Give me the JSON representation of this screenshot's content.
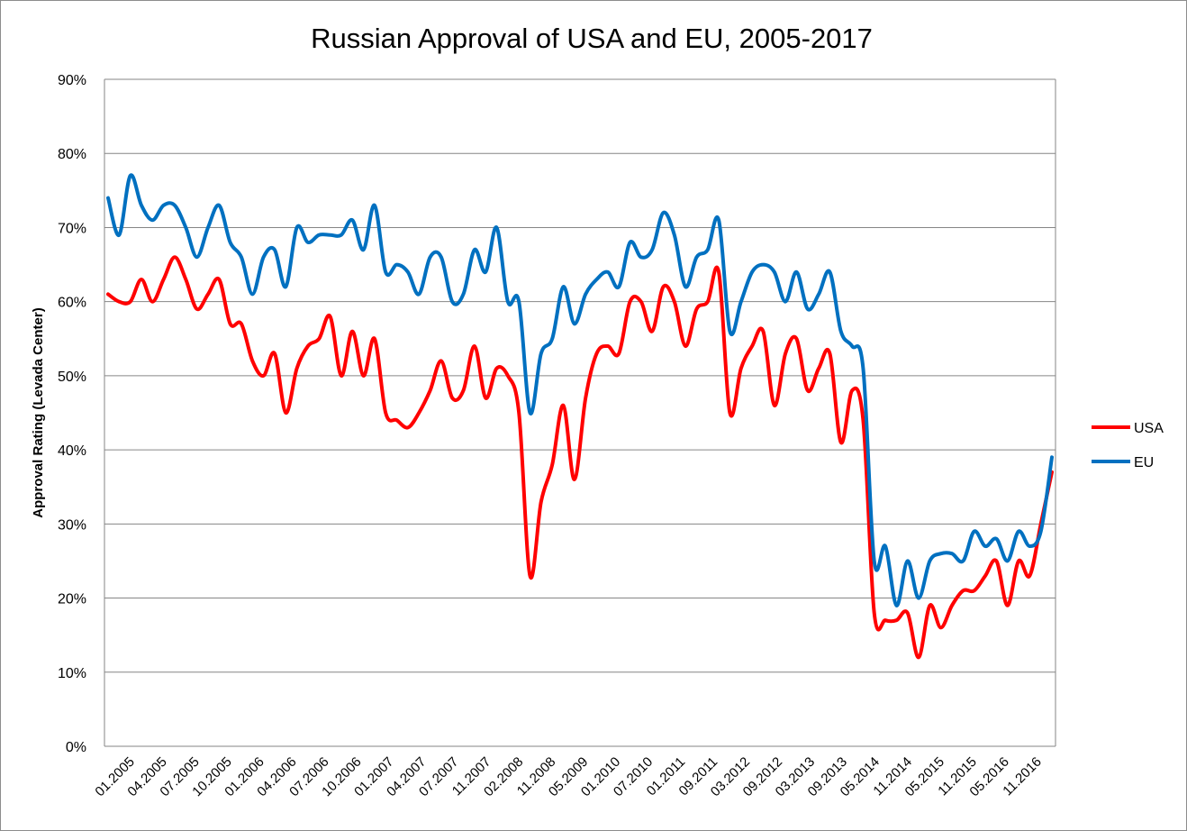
{
  "chart_data": {
    "type": "line",
    "title": "Russian Approval of USA and EU, 2005-2017",
    "xlabel": "",
    "ylabel": "Approval Rating (Levada Center)",
    "ylim": [
      0,
      90
    ],
    "yticks": [
      "0%",
      "10%",
      "20%",
      "30%",
      "40%",
      "50%",
      "60%",
      "70%",
      "80%",
      "90%"
    ],
    "x_tick_labels": [
      "01.2005",
      "04.2005",
      "07.2005",
      "10.2005",
      "01.2006",
      "04.2006",
      "07.2006",
      "10.2006",
      "01.2007",
      "04.2007",
      "07.2007",
      "11.2007",
      "02.2008",
      "11.2008",
      "05.2009",
      "01.2010",
      "07.2010",
      "01.2011",
      "09.2011",
      "03.2012",
      "09.2012",
      "03.2013",
      "09.2013",
      "05.2014",
      "11.2014",
      "05.2015",
      "11.2015",
      "05.2016",
      "11.2016"
    ],
    "grid": true,
    "legend_position": "right",
    "series": [
      {
        "name": "USA",
        "color": "#ff0000",
        "values": [
          61,
          60,
          60,
          63,
          60,
          63,
          66,
          63,
          59,
          61,
          63,
          57,
          57,
          52,
          50,
          53,
          45,
          51,
          54,
          55,
          58,
          50,
          56,
          50,
          55,
          45,
          44,
          43,
          45,
          48,
          52,
          47,
          48,
          54,
          47,
          51,
          50,
          45,
          23,
          33,
          38,
          46,
          36,
          47,
          53,
          54,
          53,
          60,
          60,
          56,
          62,
          60,
          54,
          59,
          60,
          64,
          45,
          51,
          54,
          56,
          46,
          53,
          55,
          48,
          51,
          53,
          41,
          48,
          44,
          18,
          17,
          17,
          18,
          12,
          19,
          16,
          19,
          21,
          21,
          23,
          25,
          19,
          25,
          23,
          30,
          37
        ],
        "min_at_label": "11.2014"
      },
      {
        "name": "EU",
        "color": "#0070c0",
        "values": [
          74,
          69,
          77,
          73,
          71,
          73,
          73,
          70,
          66,
          70,
          73,
          68,
          66,
          61,
          66,
          67,
          62,
          70,
          68,
          69,
          69,
          69,
          71,
          67,
          73,
          64,
          65,
          64,
          61,
          66,
          66,
          60,
          61,
          67,
          64,
          70,
          60,
          60,
          45,
          53,
          55,
          62,
          57,
          61,
          63,
          64,
          62,
          68,
          66,
          67,
          72,
          69,
          62,
          66,
          67,
          71,
          56,
          60,
          64,
          65,
          64,
          60,
          64,
          59,
          61,
          64,
          56,
          54,
          51,
          25,
          27,
          19,
          25,
          20,
          25,
          26,
          26,
          25,
          29,
          27,
          28,
          25,
          29,
          27,
          29,
          39
        ]
      }
    ]
  },
  "legend": {
    "usa_label": "USA",
    "eu_label": "EU"
  }
}
